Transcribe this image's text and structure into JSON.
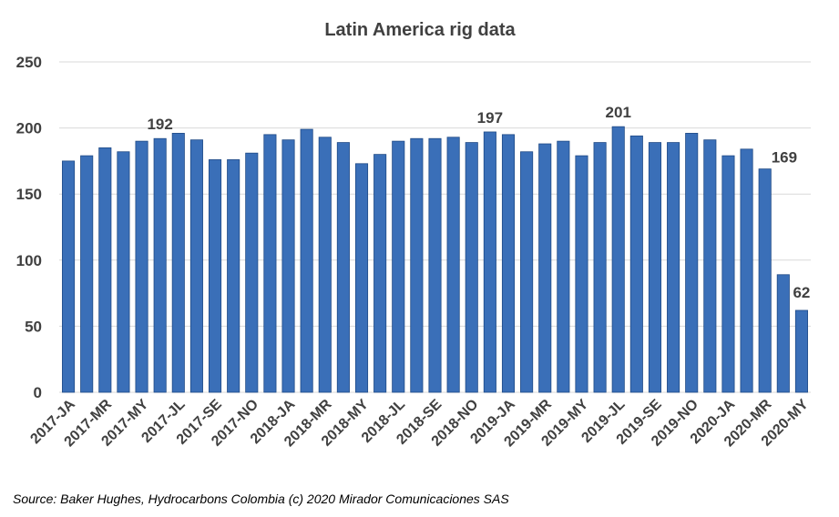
{
  "colors": {
    "bar": "#3a6fb8",
    "bar_edge": "#1f4a86",
    "grid": "#d9d9d9",
    "text": "#404040"
  },
  "source": "Source:  Baker Hughes, Hydrocarbons Colombia (c) 2020 Mirador Comunicaciones SAS",
  "chart_data": {
    "type": "bar",
    "title": "Latin America rig data",
    "xlabel": "",
    "ylabel": "",
    "ylim": [
      0,
      250
    ],
    "yticks": [
      0,
      50,
      100,
      150,
      200,
      250
    ],
    "grid": true,
    "legend": "none",
    "categories": [
      "2017-JA",
      "2017-FE",
      "2017-MR",
      "2017-AP",
      "2017-MY",
      "2017-JN",
      "2017-JL",
      "2017-AU",
      "2017-SE",
      "2017-OC",
      "2017-NO",
      "2017-DE",
      "2018-JA",
      "2018-FE",
      "2018-MR",
      "2018-AP",
      "2018-MY",
      "2018-JN",
      "2018-JL",
      "2018-AU",
      "2018-SE",
      "2018-OC",
      "2018-NO",
      "2018-DE",
      "2019-JA",
      "2019-FE",
      "2019-MR",
      "2019-AP",
      "2019-MY",
      "2019-JN",
      "2019-JL",
      "2019-AU",
      "2019-SE",
      "2019-OC",
      "2019-NO",
      "2019-DE",
      "2020-JA",
      "2020-FE",
      "2020-MR",
      "2020-AP",
      "2020-MY"
    ],
    "tick_labels": [
      "2017-JA",
      "",
      "2017-MR",
      "",
      "2017-MY",
      "",
      "2017-JL",
      "",
      "2017-SE",
      "",
      "2017-NO",
      "",
      "2018-JA",
      "",
      "2018-MR",
      "",
      "2018-MY",
      "",
      "2018-JL",
      "",
      "2018-SE",
      "",
      "2018-NO",
      "",
      "2019-JA",
      "",
      "2019-MR",
      "",
      "2019-MY",
      "",
      "2019-JL",
      "",
      "2019-SE",
      "",
      "2019-NO",
      "",
      "2020-JA",
      "",
      "2020-MR",
      "",
      "2020-MY"
    ],
    "values": [
      175,
      179,
      185,
      182,
      190,
      192,
      196,
      191,
      176,
      176,
      181,
      195,
      191,
      199,
      193,
      189,
      173,
      180,
      190,
      192,
      192,
      193,
      189,
      197,
      195,
      182,
      188,
      190,
      179,
      189,
      201,
      194,
      189,
      189,
      196,
      191,
      179,
      184,
      169,
      89,
      62
    ],
    "data_labels": [
      {
        "index": 5,
        "text": "192"
      },
      {
        "index": 23,
        "text": "197"
      },
      {
        "index": 30,
        "text": "201"
      },
      {
        "index": 38,
        "text": "169"
      },
      {
        "index": 40,
        "text": "62"
      }
    ]
  }
}
